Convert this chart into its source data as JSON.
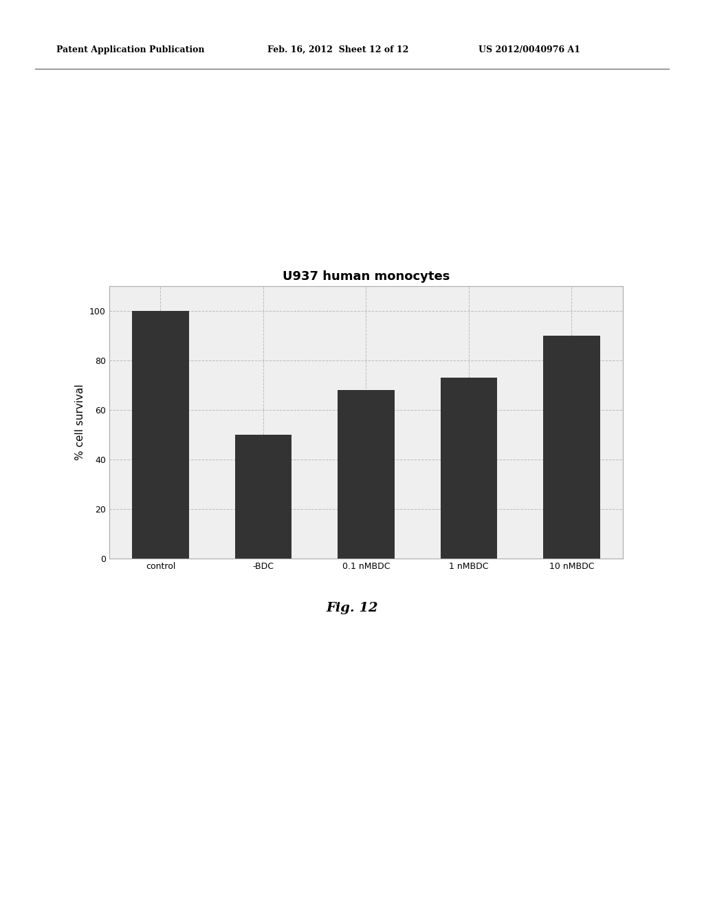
{
  "categories": [
    "control",
    "-BDC",
    "0.1 nMBDC",
    "1 nMBDC",
    "10 nMBDC"
  ],
  "values": [
    100,
    50,
    68,
    73,
    90
  ],
  "bar_color": "#333333",
  "title": "U937 human monocytes",
  "ylabel": "% cell survival",
  "ylim": [
    0,
    110
  ],
  "yticks": [
    0,
    20,
    40,
    60,
    80,
    100
  ],
  "title_fontsize": 13,
  "ylabel_fontsize": 11,
  "tick_fontsize": 9,
  "header_left": "Patent Application Publication",
  "header_mid": "Feb. 16, 2012  Sheet 12 of 12",
  "header_right": "US 2012/0040976 A1",
  "fig_caption": "Fig. 12",
  "background_color": "#ffffff",
  "chart_bg": "#efefef",
  "grid_color": "#bbbbbb",
  "border_color": "#aaaaaa"
}
